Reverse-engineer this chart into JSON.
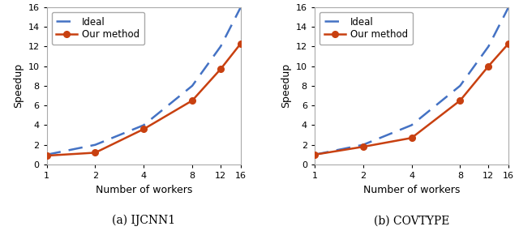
{
  "workers": [
    1,
    2,
    4,
    8,
    12,
    16
  ],
  "ideal": [
    1,
    2,
    4,
    8,
    12,
    16
  ],
  "ijcnn1_our": [
    0.9,
    1.2,
    3.6,
    6.5,
    9.7,
    12.3
  ],
  "covtype_our": [
    1.0,
    1.8,
    2.7,
    6.5,
    10.0,
    12.3
  ],
  "ylim": [
    0,
    16
  ],
  "yticks": [
    0,
    2,
    4,
    6,
    8,
    10,
    12,
    14,
    16
  ],
  "xticks": [
    1,
    2,
    4,
    8,
    12,
    16
  ],
  "xlabel": "Number of workers",
  "ylabel": "Speedup",
  "ideal_label": "Ideal",
  "our_label": "Our method",
  "ideal_color": "#4472C4",
  "our_color": "#C84010",
  "subtitle_a": "(a) IJCNN1",
  "subtitle_b": "(b) COVTYPE",
  "bg_color": "#ffffff",
  "legend_fontsize": 8.5,
  "axis_fontsize": 9,
  "tick_fontsize": 8,
  "subtitle_fontsize": 10
}
